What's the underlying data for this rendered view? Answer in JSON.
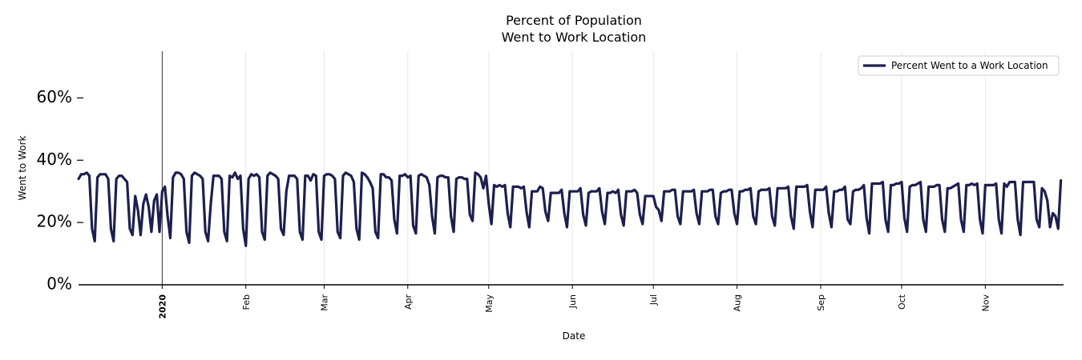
{
  "chart_data": {
    "type": "line",
    "title_line1": "Percent of Population",
    "title_line2": "Went to Work Location",
    "xlabel": "Date",
    "ylabel": "Went to Work",
    "ylim": [
      0,
      75
    ],
    "yticks": [
      {
        "value": 0,
        "label": "0%"
      },
      {
        "value": 20,
        "label": "20%"
      },
      {
        "value": 40,
        "label": "40%"
      },
      {
        "value": 60,
        "label": "60%"
      }
    ],
    "x_range_days": [
      -31,
      334
    ],
    "xticks": [
      {
        "day": 0,
        "label": "2020",
        "bold": true,
        "line": "dark"
      },
      {
        "day": 31,
        "label": "Feb"
      },
      {
        "day": 60,
        "label": "Mar"
      },
      {
        "day": 91,
        "label": "Apr"
      },
      {
        "day": 121,
        "label": "May"
      },
      {
        "day": 152,
        "label": "Jun"
      },
      {
        "day": 182,
        "label": "Jul"
      },
      {
        "day": 213,
        "label": "Aug"
      },
      {
        "day": 244,
        "label": "Sep"
      },
      {
        "day": 274,
        "label": "Oct"
      },
      {
        "day": 305,
        "label": "Nov"
      }
    ],
    "legend": {
      "position": "top-right",
      "label": "Percent Went to a Work Location"
    },
    "series": [
      {
        "name": "Percent Went to a Work Location",
        "color": "#1c1f4e",
        "x_note": "days relative to 2020-01-01, daily from -31",
        "start_day": -31,
        "values": [
          34,
          35.5,
          35.5,
          36,
          35,
          18,
          14,
          34.5,
          35.5,
          35.5,
          35.5,
          34,
          18,
          14,
          34,
          35,
          35,
          34,
          33,
          18,
          16,
          28.5,
          24,
          16,
          26,
          29,
          25,
          17,
          27,
          29,
          17,
          30,
          31.5,
          22,
          15,
          34.5,
          36,
          36,
          35.5,
          34,
          17,
          13.5,
          35,
          36,
          35.5,
          35,
          34,
          17,
          14,
          26,
          35,
          35,
          35,
          34,
          17,
          14,
          35,
          34.5,
          36,
          34,
          35,
          18,
          12.5,
          34,
          35.5,
          35,
          35.5,
          34.5,
          17,
          14.5,
          35,
          36,
          35.5,
          35,
          34,
          18,
          16,
          30,
          35,
          35,
          35,
          34,
          17,
          14.5,
          35,
          35,
          33.5,
          35.5,
          35,
          17,
          14.5,
          35,
          35.5,
          35.5,
          35,
          34,
          17,
          15,
          35,
          36,
          35.5,
          35,
          33,
          18,
          14.5,
          36,
          35.5,
          34.5,
          33,
          31,
          17,
          15,
          35.5,
          35.5,
          34.5,
          34.5,
          33.5,
          21,
          16.5,
          35,
          35,
          35.5,
          34.5,
          35,
          19,
          16.5,
          35,
          35.5,
          35,
          34.5,
          32,
          22,
          16.5,
          34.5,
          35,
          35,
          34.5,
          34.5,
          22,
          17,
          34,
          34.5,
          34.5,
          34,
          34,
          22.5,
          20.5,
          36,
          35.5,
          34.5,
          31,
          35,
          26,
          19.5,
          32,
          31.5,
          32,
          31.5,
          32,
          23,
          18.5,
          31.5,
          31.5,
          31.5,
          31,
          31.5,
          23.5,
          18.5,
          30,
          30,
          30,
          31.5,
          31,
          23.5,
          20.5,
          29.5,
          29.5,
          29.5,
          29.5,
          30.5,
          23,
          18.5,
          30,
          30,
          30,
          30,
          31,
          22.5,
          19,
          29.5,
          30,
          30,
          30,
          31,
          23.5,
          19.5,
          29.5,
          29.5,
          30,
          29.5,
          30.5,
          22.5,
          19,
          30,
          30,
          30,
          30.5,
          29.5,
          22.5,
          19.5,
          28.5,
          28.5,
          28.5,
          28.5,
          25,
          24,
          20.5,
          30,
          30,
          30,
          30.5,
          30.5,
          22,
          19.5,
          30,
          30,
          30,
          30,
          30.5,
          23,
          19.5,
          30,
          30,
          30,
          30.5,
          30.5,
          22,
          19.5,
          29.5,
          30,
          30,
          30.5,
          30.5,
          23,
          19.5,
          30,
          30,
          30.5,
          30.5,
          31,
          22,
          19.5,
          30,
          30.5,
          30.5,
          30.5,
          31,
          22,
          19,
          31,
          31,
          31,
          31,
          31.5,
          22,
          18,
          31.5,
          31.5,
          31.5,
          31.5,
          32,
          23.5,
          18.5,
          30.5,
          30.5,
          30.5,
          30.5,
          31.5,
          23,
          18.5,
          30,
          30,
          30.5,
          30.5,
          31.5,
          21,
          19.5,
          30,
          30.5,
          30.5,
          31,
          32,
          21.5,
          16.5,
          32.5,
          32.5,
          32.5,
          32.5,
          33,
          21,
          17,
          32,
          32,
          32.5,
          32.5,
          33,
          21.5,
          17,
          31.5,
          32,
          32,
          32.5,
          33,
          21,
          17,
          31.5,
          31.5,
          31.5,
          32,
          32,
          21,
          17,
          31,
          31,
          31.5,
          32,
          32.5,
          21,
          17,
          32,
          32,
          32.5,
          32,
          32.5,
          21,
          16.5,
          32,
          32,
          32,
          32,
          32.5,
          21,
          16.5,
          32.5,
          31.5,
          33,
          33,
          33,
          21,
          16,
          33,
          33,
          33,
          33,
          33,
          21,
          18.5,
          31,
          30,
          27,
          18.5,
          23,
          22,
          18,
          33.5
        ]
      }
    ]
  }
}
